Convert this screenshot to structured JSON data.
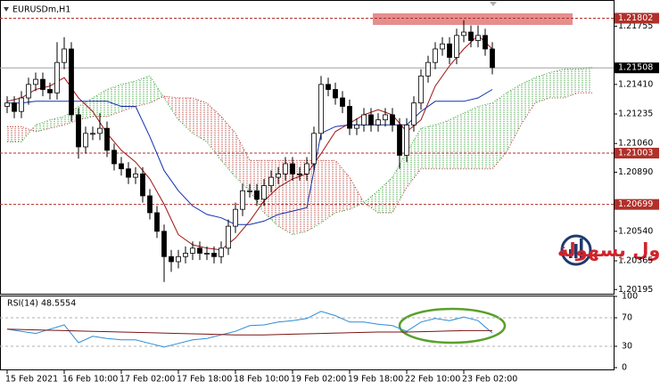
{
  "watermark": {
    "text": "التداول بسهولة"
  },
  "chart_data": [
    {
      "type": "candlestick",
      "title": "EURUSDm,H1",
      "color": "#000000",
      "xlim": [
        -1,
        85
      ],
      "ylim": [
        1.2017,
        1.2191
      ],
      "xticks": [
        {
          "value": 0,
          "label": "15 Feb 2021"
        },
        {
          "value": 8,
          "label": "16 Feb 10:00"
        },
        {
          "value": 16,
          "label": "17 Feb 02:00"
        },
        {
          "value": 24,
          "label": "17 Feb 18:00"
        },
        {
          "value": 32,
          "label": "18 Feb 10:00"
        },
        {
          "value": 40,
          "label": "19 Feb 02:00"
        },
        {
          "value": 48,
          "label": "19 Feb 18:00"
        },
        {
          "value": 56,
          "label": "22 Feb 10:00"
        },
        {
          "value": 64,
          "label": "23 Feb 02:00"
        }
      ],
      "yticks": [
        1.21755,
        {
          "value": 1.2141,
          "label": "1.21410"
        },
        1.21235,
        {
          "value": 1.2106,
          "label": "1.21060"
        },
        {
          "value": 1.2089,
          "label": "1.20890"
        },
        {
          "value": 1.2054,
          "label": "1.20540"
        },
        1.20365,
        1.20195
      ],
      "levels": [
        1.21802,
        1.21003,
        1.20699
      ],
      "level_color": "#b0302a",
      "last_price": 1.21508,
      "ichimoku_cloud": true,
      "x": [
        0,
        1,
        2,
        3,
        4,
        5,
        6,
        7,
        8,
        9,
        10,
        11,
        12,
        13,
        14,
        15,
        16,
        17,
        18,
        19,
        20,
        21,
        22,
        23,
        24,
        25,
        26,
        27,
        28,
        29,
        30,
        31,
        32,
        33,
        34,
        35,
        36,
        37,
        38,
        39,
        40,
        41,
        42,
        43,
        44,
        45,
        46,
        47,
        48,
        49,
        50,
        51,
        52,
        53,
        54,
        55,
        56,
        57,
        58,
        59,
        60,
        61,
        62,
        63,
        64,
        65,
        66,
        67,
        68
      ],
      "open": [
        1.2128,
        1.213,
        1.2125,
        1.2133,
        1.2141,
        1.2144,
        1.2138,
        1.2136,
        1.2154,
        1.2162,
        1.2123,
        1.2104,
        1.2112,
        1.2112,
        1.2115,
        1.2102,
        1.2094,
        1.2091,
        1.2086,
        1.2088,
        1.2075,
        1.2065,
        1.2054,
        1.2039,
        1.2036,
        1.2039,
        1.2041,
        1.2044,
        1.2041,
        1.2041,
        1.2039,
        1.2044,
        1.2057,
        1.2067,
        1.2078,
        1.2078,
        1.2073,
        1.2081,
        1.2086,
        1.2088,
        1.2094,
        1.2088,
        1.2088,
        1.2094,
        1.2112,
        1.2141,
        1.2138,
        1.2133,
        1.2128,
        1.2115,
        1.2117,
        1.2123,
        1.2117,
        1.212,
        1.2123,
        1.2117,
        1.2099,
        1.2117,
        1.213,
        1.2146,
        1.2154,
        1.2162,
        1.2165,
        1.2157,
        1.217,
        1.2172,
        1.2167,
        1.217,
        1.2162
      ],
      "high": [
        1.2134,
        1.2134,
        1.2137,
        1.2145,
        1.2148,
        1.2148,
        1.2142,
        1.2166,
        1.2169,
        1.2166,
        1.2127,
        1.2116,
        1.2116,
        1.2124,
        1.2119,
        1.2106,
        1.2098,
        1.2095,
        1.2092,
        1.2092,
        1.2079,
        1.2069,
        1.2058,
        1.2043,
        1.2043,
        1.2045,
        1.2048,
        1.2048,
        1.2045,
        1.2045,
        1.2048,
        1.2061,
        1.2071,
        1.2082,
        1.2082,
        1.2082,
        1.2085,
        1.209,
        1.2092,
        1.2098,
        1.2098,
        1.2092,
        1.2098,
        1.2116,
        1.2146,
        1.2145,
        1.2142,
        1.2137,
        1.2132,
        1.2121,
        1.2127,
        1.2127,
        1.2124,
        1.2127,
        1.2127,
        1.2121,
        1.2121,
        1.2134,
        1.215,
        1.2158,
        1.2166,
        1.2169,
        1.2169,
        1.2174,
        1.2179,
        1.2176,
        1.2176,
        1.2174,
        1.2166
      ],
      "low": [
        1.2124,
        1.2121,
        1.2121,
        1.2129,
        1.2137,
        1.2134,
        1.2132,
        1.2132,
        1.215,
        1.2119,
        1.2097,
        1.21,
        1.2108,
        1.2108,
        1.2098,
        1.209,
        1.2087,
        1.2082,
        1.2082,
        1.2071,
        1.2061,
        1.205,
        1.2024,
        1.203,
        1.2032,
        1.2035,
        1.2037,
        1.2037,
        1.2037,
        1.2035,
        1.2035,
        1.204,
        1.2053,
        1.2063,
        1.2074,
        1.2069,
        1.2069,
        1.2077,
        1.2082,
        1.2084,
        1.2084,
        1.2084,
        1.2084,
        1.209,
        1.2108,
        1.2134,
        1.2129,
        1.2124,
        1.2111,
        1.2111,
        1.2113,
        1.2113,
        1.2113,
        1.2116,
        1.2113,
        1.2091,
        1.2095,
        1.2113,
        1.2126,
        1.2142,
        1.215,
        1.2158,
        1.2153,
        1.2153,
        1.2166,
        1.2163,
        1.2163,
        1.2158,
        1.2147
      ],
      "close": [
        1.213,
        1.2125,
        1.2133,
        1.2141,
        1.2144,
        1.2138,
        1.2136,
        1.2154,
        1.2162,
        1.2123,
        1.2104,
        1.2112,
        1.2112,
        1.2115,
        1.2102,
        1.2094,
        1.2091,
        1.2086,
        1.2088,
        1.2075,
        1.2065,
        1.2054,
        1.2039,
        1.2036,
        1.2039,
        1.2041,
        1.2044,
        1.2041,
        1.2041,
        1.2039,
        1.2044,
        1.2057,
        1.2067,
        1.2078,
        1.2078,
        1.2073,
        1.2081,
        1.2086,
        1.2088,
        1.2094,
        1.2088,
        1.2088,
        1.2094,
        1.2112,
        1.2141,
        1.2138,
        1.2133,
        1.2128,
        1.2115,
        1.2117,
        1.2123,
        1.2117,
        1.212,
        1.2123,
        1.2117,
        1.2099,
        1.2117,
        1.213,
        1.2146,
        1.2154,
        1.2162,
        1.2165,
        1.2157,
        1.217,
        1.2172,
        1.2167,
        1.217,
        1.2162,
        1.2151
      ],
      "series": [
        {
          "color": "#a01010",
          "x": [
            0,
            2,
            4,
            6,
            8,
            10,
            12,
            14,
            16,
            18,
            20,
            22,
            24,
            26,
            28,
            30,
            32,
            34,
            36,
            38,
            40,
            42,
            44,
            46,
            48,
            50,
            52,
            54,
            56,
            58,
            60,
            62,
            64,
            66,
            68
          ],
          "values": [
            1.2131,
            1.2133,
            1.2138,
            1.214,
            1.2145,
            1.2133,
            1.2125,
            1.2112,
            1.2102,
            1.2095,
            1.2085,
            1.207,
            1.2052,
            1.2046,
            1.2044,
            1.2043,
            1.205,
            1.206,
            1.2072,
            1.208,
            1.2085,
            1.2088,
            1.21,
            1.2113,
            1.2118,
            1.2123,
            1.2126,
            1.2123,
            1.2113,
            1.212,
            1.214,
            1.2152,
            1.2162,
            1.217,
            1.2162
          ]
        },
        {
          "color": "#1030b0",
          "x": [
            0,
            2,
            4,
            6,
            8,
            10,
            12,
            14,
            16,
            18,
            20,
            22,
            24,
            26,
            28,
            30,
            32,
            34,
            36,
            38,
            40,
            42,
            44,
            46,
            48,
            50,
            52,
            54,
            56,
            58,
            60,
            62,
            64,
            66,
            68
          ],
          "values": [
            1.213,
            1.213,
            1.2131,
            1.2131,
            1.2131,
            1.2131,
            1.2131,
            1.2131,
            1.2128,
            1.2128,
            1.211,
            1.209,
            1.2078,
            1.2069,
            1.2064,
            1.2062,
            1.2058,
            1.2058,
            1.206,
            1.2064,
            1.2066,
            1.2068,
            1.2112,
            1.2116,
            1.2117,
            1.2117,
            1.2117,
            1.2117,
            1.2117,
            1.2125,
            1.2131,
            1.2131,
            1.2131,
            1.2133,
            1.2138
          ]
        },
        {
          "color": "#2f9e2f",
          "dotted": true,
          "x": [
            0,
            2,
            4,
            6,
            8,
            10,
            12,
            14,
            16,
            18,
            20,
            22,
            24,
            26,
            28,
            30,
            32,
            34,
            36,
            38,
            40,
            42,
            44,
            46,
            48,
            50,
            52,
            54,
            56,
            58,
            60,
            62,
            64,
            66,
            68,
            70,
            72,
            74,
            76,
            78,
            80,
            82
          ],
          "values": [
            1.2107,
            1.2107,
            1.2117,
            1.212,
            1.2122,
            1.2128,
            1.2133,
            1.2138,
            1.2141,
            1.2143,
            1.2146,
            1.2133,
            1.212,
            1.2112,
            1.2107,
            1.2096,
            1.2086,
            1.2078,
            1.2065,
            1.2057,
            1.2052,
            1.2054,
            1.2059,
            1.2065,
            1.2067,
            1.2071,
            1.2078,
            1.2086,
            1.2101,
            1.2115,
            1.2117,
            1.212,
            1.2124,
            1.2128,
            1.213,
            1.2136,
            1.2141,
            1.2145,
            1.2148,
            1.215,
            1.215,
            1.2151
          ]
        },
        {
          "color": "#b0302a",
          "dotted": true,
          "x": [
            0,
            2,
            4,
            6,
            8,
            10,
            12,
            14,
            16,
            18,
            20,
            22,
            24,
            26,
            28,
            30,
            32,
            34,
            36,
            38,
            40,
            42,
            44,
            46,
            48,
            50,
            52,
            54,
            56,
            58,
            60,
            62,
            64,
            66,
            68,
            70,
            72,
            74,
            76,
            78,
            80,
            82
          ],
          "values": [
            1.2116,
            1.2116,
            1.2113,
            1.2115,
            1.2117,
            1.212,
            1.2122,
            1.2122,
            1.2125,
            1.2128,
            1.213,
            1.2134,
            1.2133,
            1.2133,
            1.213,
            1.2122,
            1.2112,
            1.2096,
            1.2096,
            1.2096,
            1.2096,
            1.2096,
            1.2096,
            1.2096,
            1.2086,
            1.2071,
            1.2065,
            1.2065,
            1.208,
            1.2091,
            1.2091,
            1.2091,
            1.2091,
            1.2091,
            1.2091,
            1.2101,
            1.2117,
            1.213,
            1.2133,
            1.2133,
            1.2136,
            1.2136
          ]
        }
      ]
    },
    {
      "type": "line",
      "title": "RSI(14) 48.5554",
      "ylim": [
        0,
        100
      ],
      "yticks": [
        100,
        70,
        30,
        0
      ],
      "levels": [
        70,
        30
      ],
      "series": [
        {
          "color": "#2a8cd8",
          "x": [
            0,
            2,
            4,
            6,
            8,
            10,
            12,
            14,
            16,
            18,
            20,
            22,
            24,
            26,
            28,
            30,
            32,
            34,
            36,
            38,
            40,
            42,
            44,
            46,
            48,
            50,
            52,
            54,
            56,
            58,
            60,
            62,
            64,
            66,
            68
          ],
          "values": [
            54,
            51,
            48,
            54,
            60,
            35,
            44,
            41,
            39,
            39,
            34,
            29,
            34,
            39,
            41,
            46,
            51,
            59,
            60,
            64,
            66,
            69,
            79,
            73,
            64,
            64,
            61,
            59,
            51,
            64,
            69,
            66,
            71,
            66,
            48.5554
          ]
        },
        {
          "color": "#7a1414",
          "x": [
            0,
            4,
            8,
            12,
            16,
            20,
            24,
            28,
            32,
            36,
            40,
            44,
            48,
            52,
            56,
            60,
            64,
            68
          ],
          "values": [
            54,
            53,
            52,
            51,
            50,
            49,
            48,
            47,
            46,
            46,
            47,
            48,
            49,
            50,
            50,
            51,
            52,
            52
          ]
        }
      ]
    }
  ]
}
